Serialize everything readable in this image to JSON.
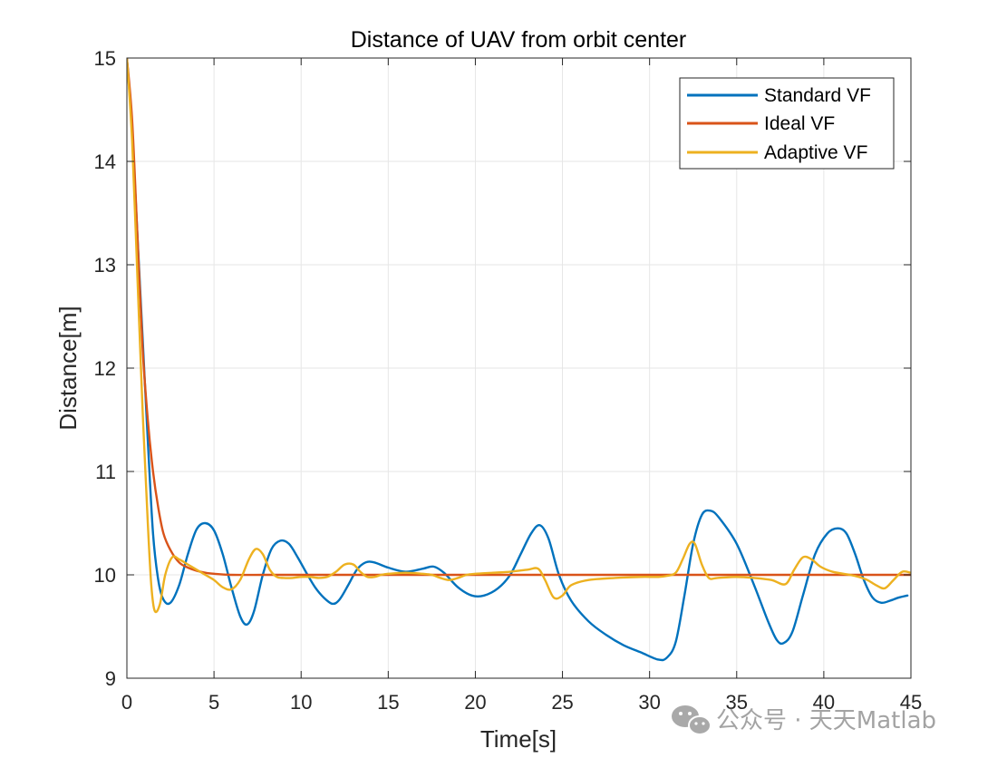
{
  "chart_data": {
    "type": "line",
    "title": "Distance of UAV from orbit center",
    "xlabel": "Time[s]",
    "ylabel": "Distance[m]",
    "xlim": [
      0,
      45
    ],
    "ylim": [
      9,
      15
    ],
    "xticks": [
      0,
      5,
      10,
      15,
      20,
      25,
      30,
      35,
      40,
      45
    ],
    "yticks": [
      9,
      10,
      11,
      12,
      13,
      14,
      15
    ],
    "grid": true,
    "legend_position": "top-right",
    "series": [
      {
        "name": "Standard VF",
        "color": "#0072BD",
        "x": [
          0,
          0.3,
          0.6,
          0.9,
          1.2,
          1.5,
          1.8,
          2.1,
          2.5,
          3.0,
          3.5,
          4.0,
          4.5,
          5.0,
          5.5,
          6.0,
          6.5,
          6.9,
          7.3,
          7.8,
          8.3,
          8.8,
          9.3,
          9.8,
          10.3,
          10.8,
          11.3,
          11.8,
          12.2,
          12.7,
          13.2,
          13.7,
          14.2,
          15.0,
          16.0,
          17.0,
          17.6,
          18.2,
          19.0,
          19.8,
          20.5,
          21.3,
          22.0,
          22.6,
          23.2,
          23.7,
          24.2,
          24.8,
          25.5,
          26.5,
          27.5,
          28.5,
          29.5,
          30.5,
          31.0,
          31.5,
          32.0,
          32.5,
          33.0,
          33.5,
          34.0,
          35.0,
          36.0,
          36.8,
          37.3,
          37.7,
          38.2,
          38.8,
          39.5,
          40.2,
          40.8,
          41.3,
          41.8,
          42.3,
          42.8,
          43.3,
          43.8,
          44.3,
          44.8
        ],
        "values": [
          15.0,
          14.3,
          13.3,
          12.3,
          11.3,
          10.4,
          9.95,
          9.76,
          9.73,
          9.9,
          10.2,
          10.44,
          10.5,
          10.43,
          10.2,
          9.88,
          9.6,
          9.52,
          9.65,
          10.0,
          10.25,
          10.33,
          10.3,
          10.17,
          10.02,
          9.88,
          9.78,
          9.72,
          9.76,
          9.9,
          10.05,
          10.12,
          10.12,
          10.07,
          10.03,
          10.06,
          10.08,
          10.02,
          9.88,
          9.8,
          9.8,
          9.87,
          10.0,
          10.2,
          10.4,
          10.48,
          10.35,
          10.0,
          9.75,
          9.55,
          9.42,
          9.32,
          9.25,
          9.18,
          9.2,
          9.35,
          9.8,
          10.3,
          10.58,
          10.62,
          10.55,
          10.3,
          9.9,
          9.55,
          9.37,
          9.34,
          9.45,
          9.8,
          10.2,
          10.4,
          10.45,
          10.4,
          10.2,
          9.95,
          9.78,
          9.73,
          9.75,
          9.78,
          9.8
        ]
      },
      {
        "name": "Ideal VF",
        "color": "#D95319",
        "x": [
          0,
          0.3,
          0.6,
          0.9,
          1.2,
          1.5,
          1.8,
          2.1,
          2.5,
          3.0,
          3.5,
          4.0,
          4.5,
          5.0,
          6.0,
          8.0,
          10.0,
          15.0,
          20.0,
          25.0,
          30.0,
          35.0,
          40.0,
          45.0
        ],
        "values": [
          15.0,
          14.4,
          13.3,
          12.2,
          11.5,
          11.0,
          10.65,
          10.4,
          10.24,
          10.12,
          10.07,
          10.04,
          10.02,
          10.01,
          10.0,
          10.0,
          10.0,
          10.0,
          10.0,
          10.0,
          10.0,
          10.0,
          10.0,
          10.0
        ]
      },
      {
        "name": "Adaptive VF",
        "color": "#EDB120",
        "x": [
          0,
          0.3,
          0.6,
          0.9,
          1.2,
          1.4,
          1.6,
          1.9,
          2.2,
          2.6,
          3.0,
          3.5,
          4.0,
          4.5,
          5.0,
          5.5,
          6.0,
          6.5,
          7.0,
          7.4,
          7.8,
          8.2,
          8.6,
          9.0,
          9.5,
          10.0,
          10.5,
          11.0,
          11.5,
          12.0,
          12.5,
          13.0,
          13.4,
          13.8,
          14.2,
          14.6,
          15.0,
          16.0,
          17.0,
          17.5,
          18.0,
          18.5,
          19.0,
          19.5,
          20.0,
          21.0,
          22.0,
          23.0,
          23.6,
          24.0,
          24.5,
          25.0,
          25.5,
          26.5,
          28.0,
          29.5,
          30.5,
          31.0,
          31.5,
          31.9,
          32.3,
          32.6,
          33.0,
          33.4,
          33.9,
          35.0,
          36.0,
          37.0,
          37.8,
          38.3,
          38.8,
          39.3,
          39.8,
          40.5,
          41.5,
          42.0,
          42.5,
          43.0,
          43.5,
          44.0,
          44.5,
          45.0
        ],
        "values": [
          15.0,
          14.2,
          12.9,
          11.6,
          10.5,
          9.9,
          9.65,
          9.72,
          10.0,
          10.17,
          10.15,
          10.1,
          10.05,
          10.0,
          9.95,
          9.88,
          9.86,
          9.95,
          10.15,
          10.25,
          10.2,
          10.05,
          9.98,
          9.97,
          9.97,
          9.98,
          9.98,
          9.97,
          9.98,
          10.03,
          10.1,
          10.1,
          10.03,
          9.98,
          9.98,
          10.0,
          10.01,
          10.02,
          10.01,
          10.0,
          9.97,
          9.95,
          9.97,
          10.0,
          10.01,
          10.02,
          10.03,
          10.05,
          10.06,
          9.95,
          9.78,
          9.8,
          9.9,
          9.95,
          9.97,
          9.98,
          9.98,
          9.99,
          10.02,
          10.15,
          10.3,
          10.3,
          10.1,
          9.97,
          9.97,
          9.98,
          9.97,
          9.95,
          9.91,
          10.05,
          10.17,
          10.15,
          10.08,
          10.03,
          10.0,
          9.98,
          9.95,
          9.9,
          9.87,
          9.95,
          10.03,
          10.02
        ]
      }
    ]
  },
  "watermark": {
    "icon": "wechat-icon",
    "text": "公众号 · 天天Matlab"
  }
}
